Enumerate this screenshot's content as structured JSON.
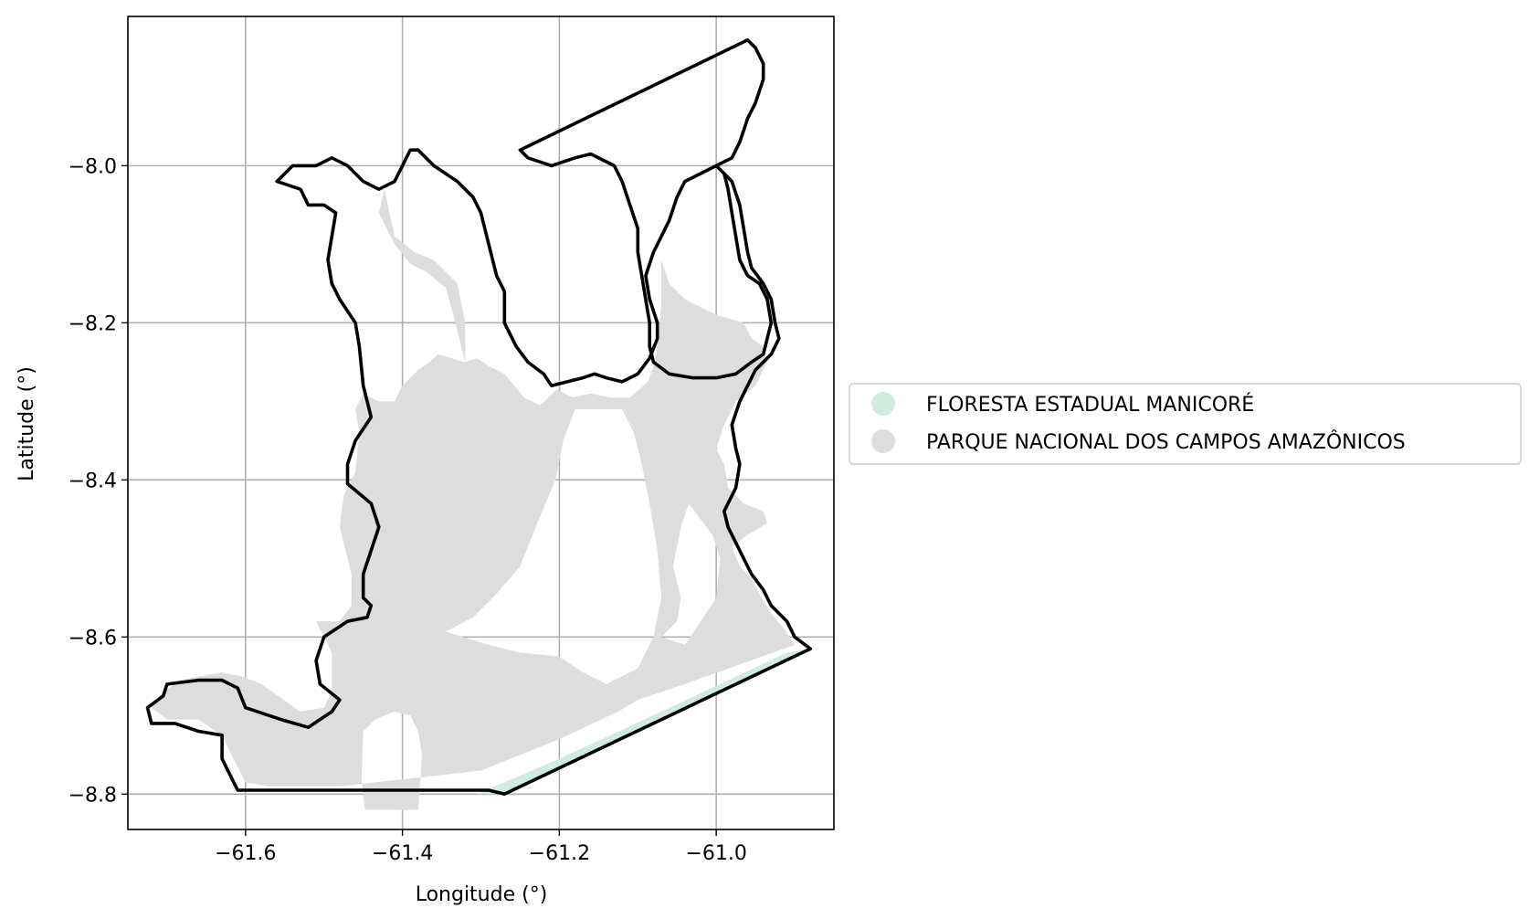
{
  "chart_data": {
    "type": "map",
    "xlabel": "Longitude (°)",
    "ylabel": "Latitude (°)",
    "xlim": [
      -61.75,
      -60.85
    ],
    "ylim": [
      -8.845,
      -7.81
    ],
    "grid": true,
    "legend_placement": "right",
    "xticks": [
      {
        "value": -61.6,
        "label": "−61.6"
      },
      {
        "value": -61.4,
        "label": "−61.4"
      },
      {
        "value": -61.2,
        "label": "−61.2"
      },
      {
        "value": -61.0,
        "label": "−61.0"
      }
    ],
    "yticks": [
      {
        "value": -8.0,
        "label": "−8.0"
      },
      {
        "value": -8.2,
        "label": "−8.2"
      },
      {
        "value": -8.4,
        "label": "−8.4"
      },
      {
        "value": -8.6,
        "label": "−8.6"
      },
      {
        "value": -8.8,
        "label": "−8.8"
      }
    ],
    "legend": [
      {
        "name": "FLORESTA ESTADUAL MANICORÉ",
        "color": "#d0ebdf"
      },
      {
        "name": "PARQUE NACIONAL DOS CAMPOS AMAZÔNICOS",
        "color": "#dddddd"
      }
    ],
    "regions": [
      {
        "name": "PARQUE NACIONAL DOS CAMPOS AMAZÔNICOS",
        "color": "#dddddd",
        "coords": [
          [
            -61.423,
            -8.03
          ],
          [
            -61.43,
            -8.06
          ],
          [
            -61.41,
            -8.1
          ],
          [
            -61.39,
            -8.125
          ],
          [
            -61.37,
            -8.135
          ],
          [
            -61.345,
            -8.155
          ],
          [
            -61.335,
            -8.19
          ],
          [
            -61.325,
            -8.23
          ],
          [
            -61.32,
            -8.25
          ],
          [
            -61.305,
            -8.245
          ],
          [
            -61.29,
            -8.255
          ],
          [
            -61.27,
            -8.265
          ],
          [
            -61.245,
            -8.295
          ],
          [
            -61.225,
            -8.305
          ],
          [
            -61.203,
            -8.285
          ],
          [
            -61.183,
            -8.295
          ],
          [
            -61.16,
            -8.29
          ],
          [
            -61.135,
            -8.295
          ],
          [
            -61.11,
            -8.295
          ],
          [
            -61.087,
            -8.275
          ],
          [
            -61.078,
            -8.25
          ],
          [
            -61.073,
            -8.21
          ],
          [
            -61.07,
            -8.175
          ],
          [
            -61.07,
            -8.12
          ],
          [
            -61.06,
            -8.15
          ],
          [
            -61.04,
            -8.17
          ],
          [
            -61.0,
            -8.19
          ],
          [
            -60.965,
            -8.2
          ],
          [
            -60.955,
            -8.22
          ],
          [
            -60.94,
            -8.23
          ],
          [
            -60.935,
            -8.25
          ],
          [
            -60.95,
            -8.28
          ],
          [
            -60.975,
            -8.3
          ],
          [
            -60.99,
            -8.33
          ],
          [
            -61.0,
            -8.36
          ],
          [
            -60.99,
            -8.38
          ],
          [
            -60.985,
            -8.41
          ],
          [
            -60.965,
            -8.43
          ],
          [
            -60.94,
            -8.44
          ],
          [
            -60.935,
            -8.455
          ],
          [
            -60.96,
            -8.47
          ],
          [
            -60.98,
            -8.485
          ],
          [
            -60.97,
            -8.51
          ],
          [
            -60.955,
            -8.525
          ],
          [
            -60.945,
            -8.545
          ],
          [
            -60.93,
            -8.57
          ],
          [
            -60.912,
            -8.592
          ],
          [
            -60.9,
            -8.61
          ],
          [
            -61.04,
            -8.66
          ],
          [
            -61.1,
            -8.68
          ],
          [
            -61.125,
            -8.695
          ],
          [
            -61.2,
            -8.73
          ],
          [
            -61.3,
            -8.77
          ],
          [
            -61.48,
            -8.79
          ],
          [
            -61.57,
            -8.79
          ],
          [
            -61.6,
            -8.785
          ],
          [
            -61.618,
            -8.75
          ],
          [
            -61.63,
            -8.725
          ],
          [
            -61.66,
            -8.705
          ],
          [
            -61.7,
            -8.705
          ],
          [
            -61.72,
            -8.69
          ],
          [
            -61.71,
            -8.675
          ],
          [
            -61.685,
            -8.655
          ],
          [
            -61.63,
            -8.645
          ],
          [
            -61.605,
            -8.65
          ],
          [
            -61.58,
            -8.66
          ],
          [
            -61.53,
            -8.695
          ],
          [
            -61.5,
            -8.69
          ],
          [
            -61.49,
            -8.67
          ],
          [
            -61.49,
            -8.62
          ],
          [
            -61.51,
            -8.58
          ],
          [
            -61.48,
            -8.58
          ],
          [
            -61.465,
            -8.56
          ],
          [
            -61.465,
            -8.52
          ],
          [
            -61.48,
            -8.46
          ],
          [
            -61.475,
            -8.42
          ],
          [
            -61.46,
            -8.39
          ],
          [
            -61.455,
            -8.34
          ],
          [
            -61.46,
            -8.31
          ],
          [
            -61.45,
            -8.29
          ],
          [
            -61.43,
            -8.3
          ],
          [
            -61.41,
            -8.3
          ],
          [
            -61.4,
            -8.28
          ],
          [
            -61.38,
            -8.26
          ],
          [
            -61.365,
            -8.25
          ],
          [
            -61.355,
            -8.24
          ],
          [
            -61.32,
            -8.25
          ],
          [
            -61.32,
            -8.2
          ],
          [
            -61.33,
            -8.15
          ],
          [
            -61.36,
            -8.12
          ],
          [
            -61.385,
            -8.11
          ],
          [
            -61.41,
            -8.09
          ]
        ]
      },
      {
        "name": "FLORESTA ESTADUAL MANICORÉ",
        "color": "#d0ebdf",
        "coords": [
          [
            -61.305,
            -8.8
          ],
          [
            -61.27,
            -8.8
          ],
          [
            -60.88,
            -8.615
          ],
          [
            -60.91,
            -8.62
          ],
          [
            -61.07,
            -8.695
          ],
          [
            -61.2,
            -8.755
          ],
          [
            -61.27,
            -8.785
          ]
        ]
      }
    ],
    "holes": [
      {
        "coords": [
          [
            -61.448,
            -8.82
          ],
          [
            -61.452,
            -8.78
          ],
          [
            -61.45,
            -8.72
          ],
          [
            -61.435,
            -8.705
          ],
          [
            -61.41,
            -8.695
          ],
          [
            -61.39,
            -8.7
          ],
          [
            -61.38,
            -8.72
          ],
          [
            -61.375,
            -8.75
          ],
          [
            -61.38,
            -8.82
          ]
        ]
      },
      {
        "coords": [
          [
            -61.345,
            -8.593
          ],
          [
            -61.31,
            -8.575
          ],
          [
            -61.28,
            -8.545
          ],
          [
            -61.25,
            -8.51
          ],
          [
            -61.23,
            -8.46
          ],
          [
            -61.205,
            -8.4
          ],
          [
            -61.195,
            -8.35
          ],
          [
            -61.18,
            -8.31
          ],
          [
            -61.145,
            -8.31
          ],
          [
            -61.12,
            -8.31
          ],
          [
            -61.105,
            -8.34
          ],
          [
            -61.095,
            -8.38
          ],
          [
            -61.085,
            -8.43
          ],
          [
            -61.075,
            -8.49
          ],
          [
            -61.07,
            -8.55
          ],
          [
            -61.08,
            -8.6
          ],
          [
            -61.1,
            -8.64
          ],
          [
            -61.14,
            -8.66
          ],
          [
            -61.17,
            -8.645
          ],
          [
            -61.2,
            -8.625
          ],
          [
            -61.25,
            -8.62
          ],
          [
            -61.29,
            -8.61
          ]
        ]
      },
      {
        "coords": [
          [
            -61.07,
            -8.6
          ],
          [
            -61.05,
            -8.58
          ],
          [
            -61.045,
            -8.55
          ],
          [
            -61.055,
            -8.51
          ],
          [
            -61.045,
            -8.46
          ],
          [
            -61.035,
            -8.43
          ],
          [
            -61.02,
            -8.45
          ],
          [
            -61.005,
            -8.47
          ],
          [
            -60.995,
            -8.5
          ],
          [
            -61.0,
            -8.55
          ],
          [
            -61.02,
            -8.58
          ],
          [
            -61.04,
            -8.61
          ]
        ]
      }
    ],
    "boundary": [
      [
        -61.29,
        -8.795
      ],
      [
        -61.58,
        -8.795
      ],
      [
        -61.61,
        -8.795
      ],
      [
        -61.63,
        -8.755
      ],
      [
        -61.63,
        -8.725
      ],
      [
        -61.66,
        -8.72
      ],
      [
        -61.69,
        -8.71
      ],
      [
        -61.72,
        -8.71
      ],
      [
        -61.725,
        -8.69
      ],
      [
        -61.705,
        -8.675
      ],
      [
        -61.7,
        -8.66
      ],
      [
        -61.66,
        -8.655
      ],
      [
        -61.63,
        -8.655
      ],
      [
        -61.61,
        -8.665
      ],
      [
        -61.6,
        -8.69
      ],
      [
        -61.555,
        -8.705
      ],
      [
        -61.52,
        -8.715
      ],
      [
        -61.49,
        -8.695
      ],
      [
        -61.48,
        -8.68
      ],
      [
        -61.505,
        -8.66
      ],
      [
        -61.51,
        -8.63
      ],
      [
        -61.5,
        -8.6
      ],
      [
        -61.47,
        -8.58
      ],
      [
        -61.445,
        -8.575
      ],
      [
        -61.44,
        -8.56
      ],
      [
        -61.45,
        -8.55
      ],
      [
        -61.45,
        -8.52
      ],
      [
        -61.43,
        -8.46
      ],
      [
        -61.44,
        -8.43
      ],
      [
        -61.47,
        -8.405
      ],
      [
        -61.47,
        -8.38
      ],
      [
        -61.46,
        -8.35
      ],
      [
        -61.44,
        -8.32
      ],
      [
        -61.45,
        -8.28
      ],
      [
        -61.455,
        -8.23
      ],
      [
        -61.46,
        -8.2
      ],
      [
        -61.48,
        -8.17
      ],
      [
        -61.49,
        -8.15
      ],
      [
        -61.495,
        -8.12
      ],
      [
        -61.49,
        -8.09
      ],
      [
        -61.485,
        -8.06
      ],
      [
        -61.5,
        -8.05
      ],
      [
        -61.52,
        -8.05
      ],
      [
        -61.53,
        -8.03
      ],
      [
        -61.56,
        -8.02
      ],
      [
        -61.54,
        -8.0
      ],
      [
        -61.51,
        -8.0
      ],
      [
        -61.49,
        -7.99
      ],
      [
        -61.47,
        -8.0
      ],
      [
        -61.45,
        -8.02
      ],
      [
        -61.43,
        -8.03
      ],
      [
        -61.41,
        -8.02
      ],
      [
        -61.4,
        -8.0
      ],
      [
        -61.39,
        -7.98
      ],
      [
        -61.38,
        -7.98
      ],
      [
        -61.36,
        -8.0
      ],
      [
        -61.33,
        -8.02
      ],
      [
        -61.31,
        -8.04
      ],
      [
        -61.3,
        -8.06
      ],
      [
        -61.29,
        -8.1
      ],
      [
        -61.28,
        -8.14
      ],
      [
        -61.27,
        -8.16
      ],
      [
        -61.27,
        -8.2
      ],
      [
        -61.255,
        -8.23
      ],
      [
        -61.24,
        -8.25
      ],
      [
        -61.22,
        -8.265
      ],
      [
        -61.21,
        -8.28
      ],
      [
        -61.19,
        -8.275
      ],
      [
        -61.17,
        -8.27
      ],
      [
        -61.155,
        -8.265
      ],
      [
        -61.14,
        -8.27
      ],
      [
        -61.12,
        -8.275
      ],
      [
        -61.1,
        -8.265
      ],
      [
        -61.085,
        -8.245
      ],
      [
        -61.075,
        -8.22
      ],
      [
        -61.075,
        -8.2
      ],
      [
        -61.085,
        -8.17
      ],
      [
        -61.09,
        -8.14
      ],
      [
        -61.08,
        -8.11
      ],
      [
        -61.06,
        -8.07
      ],
      [
        -61.05,
        -8.04
      ],
      [
        -61.04,
        -8.02
      ],
      [
        -61.02,
        -8.01
      ],
      [
        -61.0,
        -8.0
      ],
      [
        -60.98,
        -7.99
      ],
      [
        -60.97,
        -7.97
      ],
      [
        -60.96,
        -7.94
      ],
      [
        -60.95,
        -7.92
      ],
      [
        -60.94,
        -7.89
      ],
      [
        -60.94,
        -7.87
      ],
      [
        -60.95,
        -7.85
      ],
      [
        -60.96,
        -7.84
      ],
      [
        -61.25,
        -7.98
      ],
      [
        -61.24,
        -7.99
      ],
      [
        -61.21,
        -8.0
      ],
      [
        -61.18,
        -7.99
      ],
      [
        -61.16,
        -7.985
      ],
      [
        -61.13,
        -8.0
      ],
      [
        -61.12,
        -8.02
      ],
      [
        -61.11,
        -8.05
      ],
      [
        -61.1,
        -8.08
      ],
      [
        -61.1,
        -8.11
      ],
      [
        -61.095,
        -8.14
      ],
      [
        -61.09,
        -8.17
      ],
      [
        -61.085,
        -8.2
      ],
      [
        -61.085,
        -8.23
      ],
      [
        -61.08,
        -8.25
      ],
      [
        -61.06,
        -8.265
      ],
      [
        -61.03,
        -8.27
      ],
      [
        -61.0,
        -8.27
      ],
      [
        -60.975,
        -8.265
      ],
      [
        -60.955,
        -8.25
      ],
      [
        -60.94,
        -8.24
      ],
      [
        -60.935,
        -8.22
      ],
      [
        -60.93,
        -8.2
      ],
      [
        -60.935,
        -8.17
      ],
      [
        -60.945,
        -8.15
      ],
      [
        -60.96,
        -8.14
      ],
      [
        -60.97,
        -8.12
      ],
      [
        -60.975,
        -8.09
      ],
      [
        -60.98,
        -8.06
      ],
      [
        -60.985,
        -8.03
      ],
      [
        -60.99,
        -8.01
      ],
      [
        -61.0,
        -8.0
      ],
      [
        -60.98,
        -8.02
      ],
      [
        -60.97,
        -8.05
      ],
      [
        -60.965,
        -8.08
      ],
      [
        -60.96,
        -8.11
      ],
      [
        -60.955,
        -8.13
      ],
      [
        -60.94,
        -8.15
      ],
      [
        -60.93,
        -8.17
      ],
      [
        -60.925,
        -8.2
      ],
      [
        -60.92,
        -8.22
      ],
      [
        -60.93,
        -8.24
      ],
      [
        -60.95,
        -8.26
      ],
      [
        -60.96,
        -8.28
      ],
      [
        -60.97,
        -8.3
      ],
      [
        -60.98,
        -8.33
      ],
      [
        -60.975,
        -8.36
      ],
      [
        -60.97,
        -8.38
      ],
      [
        -60.975,
        -8.41
      ],
      [
        -60.99,
        -8.44
      ],
      [
        -60.985,
        -8.46
      ],
      [
        -60.975,
        -8.48
      ],
      [
        -60.965,
        -8.5
      ],
      [
        -60.955,
        -8.52
      ],
      [
        -60.94,
        -8.54
      ],
      [
        -60.93,
        -8.56
      ],
      [
        -60.91,
        -8.58
      ],
      [
        -60.9,
        -8.6
      ],
      [
        -60.88,
        -8.615
      ],
      [
        -61.27,
        -8.8
      ],
      [
        -61.29,
        -8.795
      ]
    ]
  }
}
